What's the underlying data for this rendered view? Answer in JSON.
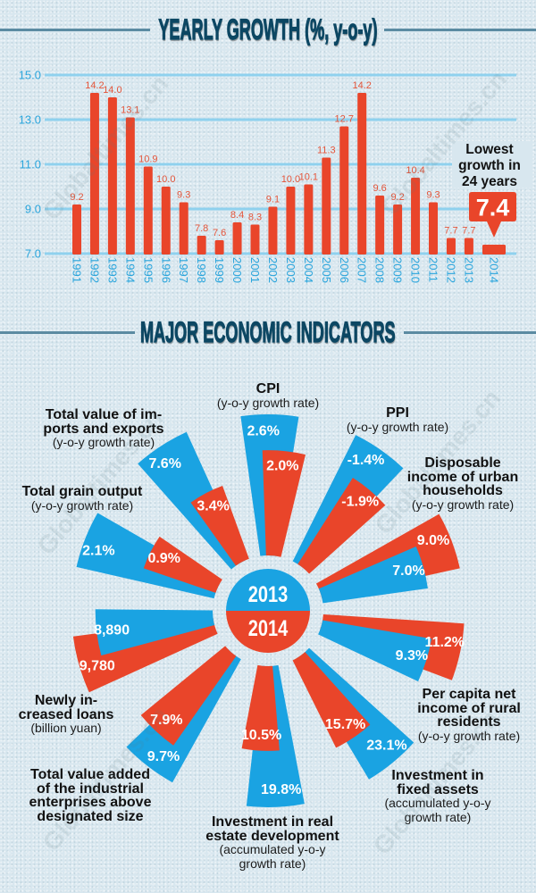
{
  "watermark": "Globaltimes.cn",
  "colors": {
    "series_2013": "#1aa3e2",
    "series_2014": "#e9452a",
    "bar": "#e9452a",
    "value_text": "#e4553a",
    "axis_text": "#2aa5dc",
    "grid": "#8fd1ee",
    "background": "#d8e7ef",
    "heading": "#0c4763"
  },
  "chart_data": [
    {
      "type": "bar",
      "title": "YEARLY GROWTH (%, y-o-y)",
      "ylim": [
        7.0,
        15.0
      ],
      "yticks": [
        "15.0",
        "13.0",
        "11.0",
        "9.0",
        "7.0"
      ],
      "grid": true,
      "categories": [
        "1991",
        "1992",
        "1993",
        "1994",
        "1995",
        "1996",
        "1997",
        "1998",
        "1999",
        "2000",
        "2001",
        "2002",
        "2003",
        "2004",
        "2005",
        "2006",
        "2007",
        "2008",
        "2009",
        "2010",
        "2011",
        "2012",
        "2013",
        "2014"
      ],
      "values": [
        9.2,
        14.2,
        14.0,
        13.1,
        10.9,
        10.0,
        9.3,
        7.8,
        7.6,
        8.4,
        8.3,
        9.1,
        10.0,
        10.1,
        11.3,
        12.7,
        14.2,
        9.6,
        9.2,
        10.4,
        9.3,
        7.7,
        7.7,
        7.4
      ],
      "value_labels": [
        "9.2",
        "14.2",
        "14.0",
        "13.1",
        "10.9",
        "10.0",
        "9.3",
        "7.8",
        "7.6",
        "8.4",
        "8.3",
        "9.1",
        "10.0",
        "10.1",
        "11.3",
        "12.7",
        "14.2",
        "9.6",
        "9.2",
        "10.4",
        "9.3",
        "7.7",
        "7.7",
        "7.4"
      ],
      "annotation": {
        "category_index": 23,
        "lines": [
          "Lowest",
          "growth in",
          "24 years"
        ]
      }
    },
    {
      "type": "bar",
      "subtype": "radial",
      "title": "MAJOR ECONOMIC INDICATORS",
      "categories": [
        {
          "title_lines": [
            "CPI"
          ],
          "note_lines": [
            "(y-o-y growth rate)"
          ]
        },
        {
          "title_lines": [
            "PPI"
          ],
          "note_lines": [
            "(y-o-y growth rate)"
          ]
        },
        {
          "title_lines": [
            "Disposable",
            "income of urban",
            "households"
          ],
          "note_lines": [
            "(y-o-y growth rate)"
          ]
        },
        {
          "title_lines": [
            "Per capita net",
            "income of rural",
            "residents"
          ],
          "note_lines": [
            "(y-o-y growth rate)"
          ]
        },
        {
          "title_lines": [
            "Investment in",
            "fixed assets"
          ],
          "note_lines": [
            "(accumulated y-o-y",
            "growth rate)"
          ]
        },
        {
          "title_lines": [
            "Investment in real",
            "estate development"
          ],
          "note_lines": [
            "(accumulated y-o-y",
            "growth rate)"
          ]
        },
        {
          "title_lines": [
            "Total value added",
            "of the industrial",
            "enterprises above",
            "designated size"
          ],
          "note_lines": []
        },
        {
          "title_lines": [
            "Newly in-",
            "creased loans"
          ],
          "note_lines": [
            "(billion yuan)"
          ]
        },
        {
          "title_lines": [
            "Total grain output"
          ],
          "note_lines": [
            "(y-o-y growth rate)"
          ]
        },
        {
          "title_lines": [
            "Total value of im-",
            "ports and exports"
          ],
          "note_lines": [
            "(y-o-y growth rate)"
          ]
        }
      ],
      "series": [
        {
          "name": "2013",
          "values": [
            2.6,
            -1.4,
            7.0,
            9.3,
            23.1,
            19.8,
            9.7,
            8890,
            2.1,
            7.6
          ],
          "labels": [
            "2.6%",
            "-1.4%",
            "7.0%",
            "9.3%",
            "23.1%",
            "19.8%",
            "9.7%",
            "8,890",
            "2.1%",
            "7.6%"
          ]
        },
        {
          "name": "2014",
          "values": [
            2.0,
            -1.9,
            9.0,
            11.2,
            15.7,
            10.5,
            7.9,
            9780,
            0.9,
            3.4
          ],
          "labels": [
            "2.0%",
            "-1.9%",
            "9.0%",
            "11.2%",
            "15.7%",
            "10.5%",
            "7.9%",
            "9,780",
            "0.9%",
            "3.4%"
          ]
        }
      ]
    }
  ]
}
